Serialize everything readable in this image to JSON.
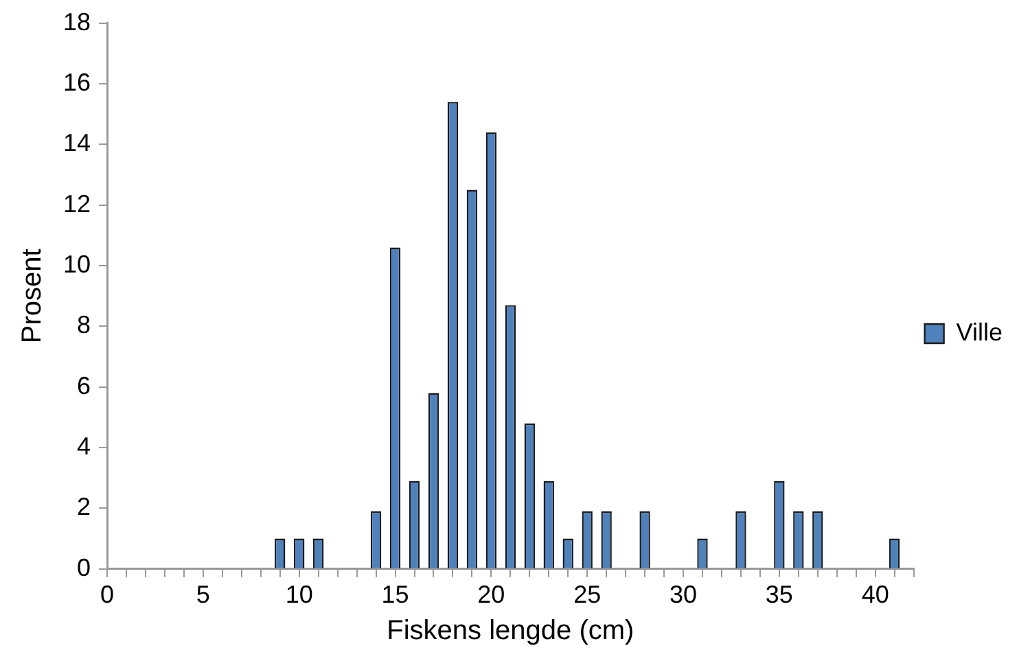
{
  "chart_data": {
    "type": "bar",
    "xlabel": "Fiskens lengde (cm)",
    "ylabel": "Prosent",
    "x": [
      9,
      10,
      11,
      14,
      15,
      16,
      17,
      18,
      19,
      20,
      21,
      22,
      23,
      24,
      25,
      26,
      28,
      31,
      33,
      35,
      36,
      37,
      41
    ],
    "series": [
      {
        "name": "Ville",
        "color": "#4f81bd",
        "values": [
          1.0,
          1.0,
          1.0,
          1.9,
          10.6,
          2.9,
          5.8,
          15.4,
          12.5,
          14.4,
          8.7,
          4.8,
          2.9,
          1.0,
          1.9,
          1.9,
          1.9,
          1.0,
          1.9,
          2.9,
          1.9,
          1.9,
          1.0
        ]
      }
    ],
    "xlim": [
      0,
      42
    ],
    "xticks": [
      0,
      {
        "value": 1,
        "label": null
      },
      {
        "value": 2,
        "label": null
      },
      {
        "value": 3,
        "label": null
      },
      {
        "value": 4,
        "label": null
      },
      5,
      {
        "value": 6,
        "label": null
      },
      {
        "value": 7,
        "label": null
      },
      {
        "value": 8,
        "label": null
      },
      {
        "value": 9,
        "label": null
      },
      10,
      {
        "value": 11,
        "label": null
      },
      {
        "value": 12,
        "label": null
      },
      {
        "value": 13,
        "label": null
      },
      {
        "value": 14,
        "label": null
      },
      15,
      {
        "value": 16,
        "label": null
      },
      {
        "value": 17,
        "label": null
      },
      {
        "value": 18,
        "label": null
      },
      {
        "value": 19,
        "label": null
      },
      20,
      {
        "value": 21,
        "label": null
      },
      {
        "value": 22,
        "label": null
      },
      {
        "value": 23,
        "label": null
      },
      {
        "value": 24,
        "label": null
      },
      25,
      {
        "value": 26,
        "label": null
      },
      {
        "value": 27,
        "label": null
      },
      {
        "value": 28,
        "label": null
      },
      {
        "value": 29,
        "label": null
      },
      30,
      {
        "value": 31,
        "label": null
      },
      {
        "value": 32,
        "label": null
      },
      {
        "value": 33,
        "label": null
      },
      {
        "value": 34,
        "label": null
      },
      35,
      {
        "value": 36,
        "label": null
      },
      {
        "value": 37,
        "label": null
      },
      {
        "value": 38,
        "label": null
      },
      {
        "value": 39,
        "label": null
      },
      40,
      {
        "value": 41,
        "label": null
      },
      {
        "value": 42,
        "label": null
      }
    ],
    "ylim": [
      0,
      18
    ],
    "yticks": [
      0,
      2,
      4,
      6,
      8,
      10,
      12,
      14,
      16,
      18
    ],
    "grid": false,
    "legend": "right"
  }
}
